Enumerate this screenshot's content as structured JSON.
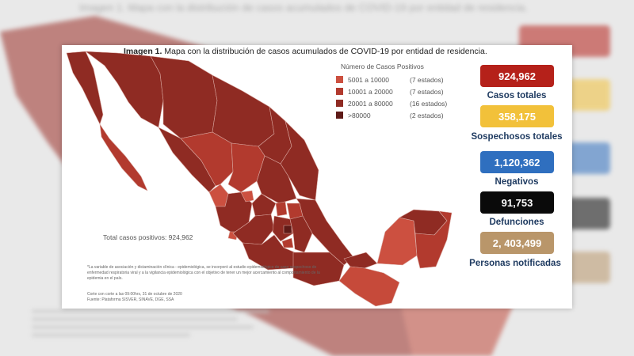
{
  "caption": {
    "bold": "Imagen 1.",
    "text": "Mapa con la distribución de casos acumulados de COVID-19 por entidad de residencia."
  },
  "legend": {
    "title": "Número de Casos Positivos",
    "items": [
      {
        "range": "5001 a 10000",
        "count": "(7 estados)",
        "color": "#cc5040"
      },
      {
        "range": "10001 a 20000",
        "count": "(7 estados)",
        "color": "#b23a2e"
      },
      {
        "range": "20001 a 80000",
        "count": "(16 estados)",
        "color": "#8f2b23"
      },
      {
        "range": ">80000",
        "count": "(2 estados)",
        "color": "#5e1a17"
      }
    ]
  },
  "total_note": "Total casos positivos: 924,962",
  "footnote": "*La variable de asociación y dictaminación clínica - epidemiológica, se incorporó al estudio epidemiológico de caso sospechoso de enfermedad respiratoria viral y a la vigilancia epidemiológica con el objetivo de tener un mejor acercamiento al comportamiento de la epidemia en el país.",
  "source": {
    "line1": "Corte con corte a las 09:00hrs, 31 de octubre de 2020",
    "line2": "Fuente: Plataforma SISVER, SINAVE, DGE, SSA"
  },
  "stats": [
    {
      "value": "924,962",
      "label": "Casos totales",
      "color": "#b5211a"
    },
    {
      "value": "358,175",
      "label": "Sospechosos totales",
      "color": "#f2c13a"
    },
    {
      "value": "1,120,362",
      "label": "Negativos",
      "color": "#2f6fbf"
    },
    {
      "value": "91,753",
      "label": "Defunciones",
      "color": "#0a0a0a"
    },
    {
      "value": "2, 403,499",
      "label": "Personas notificadas",
      "color": "#b9966a"
    }
  ],
  "background": {
    "title": "Imagen 1. Mapa con la distribución de casos acumulados de COVID-19 por entidad de residencia."
  }
}
